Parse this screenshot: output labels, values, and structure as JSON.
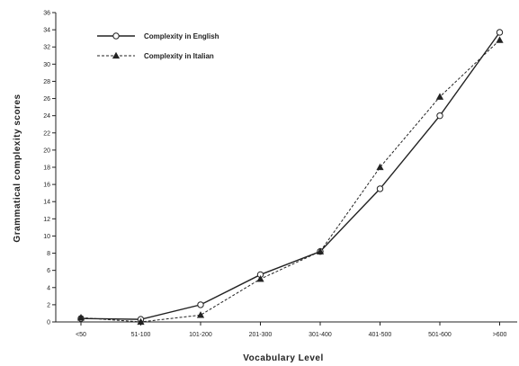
{
  "chart_data": {
    "type": "line",
    "xlabel": "Vocabulary   Level",
    "ylabel": "Grammatical   complexity   scores",
    "categories": [
      "<50",
      "51-100",
      "101-200",
      "201-300",
      "301-400",
      "401-500",
      "501-600",
      ">600"
    ],
    "ylim": [
      0,
      36
    ],
    "yticks": [
      0,
      2,
      4,
      6,
      8,
      10,
      12,
      14,
      16,
      18,
      20,
      22,
      24,
      26,
      28,
      30,
      32,
      34,
      36
    ],
    "grid": false,
    "legend_position": "top-left",
    "series": [
      {
        "name": "Complexity in English",
        "marker": "circle",
        "line": "solid",
        "values": [
          0.4,
          0.3,
          2.0,
          5.5,
          8.2,
          15.5,
          24.0,
          33.7
        ]
      },
      {
        "name": "Complexity in Italian",
        "marker": "triangle",
        "line": "dashed",
        "values": [
          0.5,
          0.0,
          0.8,
          5.0,
          8.2,
          18.0,
          26.2,
          32.8
        ]
      }
    ]
  }
}
